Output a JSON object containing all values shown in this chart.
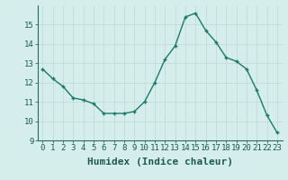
{
  "x": [
    0,
    1,
    2,
    3,
    4,
    5,
    6,
    7,
    8,
    9,
    10,
    11,
    12,
    13,
    14,
    15,
    16,
    17,
    18,
    19,
    20,
    21,
    22,
    23
  ],
  "y": [
    12.7,
    12.2,
    11.8,
    11.2,
    11.1,
    10.9,
    10.4,
    10.4,
    10.4,
    10.5,
    11.0,
    12.0,
    13.2,
    13.9,
    15.4,
    15.6,
    14.7,
    14.1,
    13.3,
    13.1,
    12.7,
    11.6,
    10.3,
    9.4
  ],
  "xlabel": "Humidex (Indice chaleur)",
  "line_color": "#1a7a6a",
  "marker": "+",
  "marker_size": 3,
  "linewidth": 1.0,
  "bg_color": "#d6eeeb",
  "grid_color_major": "#c0dbd8",
  "grid_color_minor": "#e0f0ee",
  "xlim": [
    -0.5,
    23.5
  ],
  "ylim": [
    9,
    16
  ],
  "yticks": [
    9,
    10,
    11,
    12,
    13,
    14,
    15
  ],
  "xticks": [
    0,
    1,
    2,
    3,
    4,
    5,
    6,
    7,
    8,
    9,
    10,
    11,
    12,
    13,
    14,
    15,
    16,
    17,
    18,
    19,
    20,
    21,
    22,
    23
  ],
  "tick_fontsize": 6.5,
  "xlabel_fontsize": 8
}
